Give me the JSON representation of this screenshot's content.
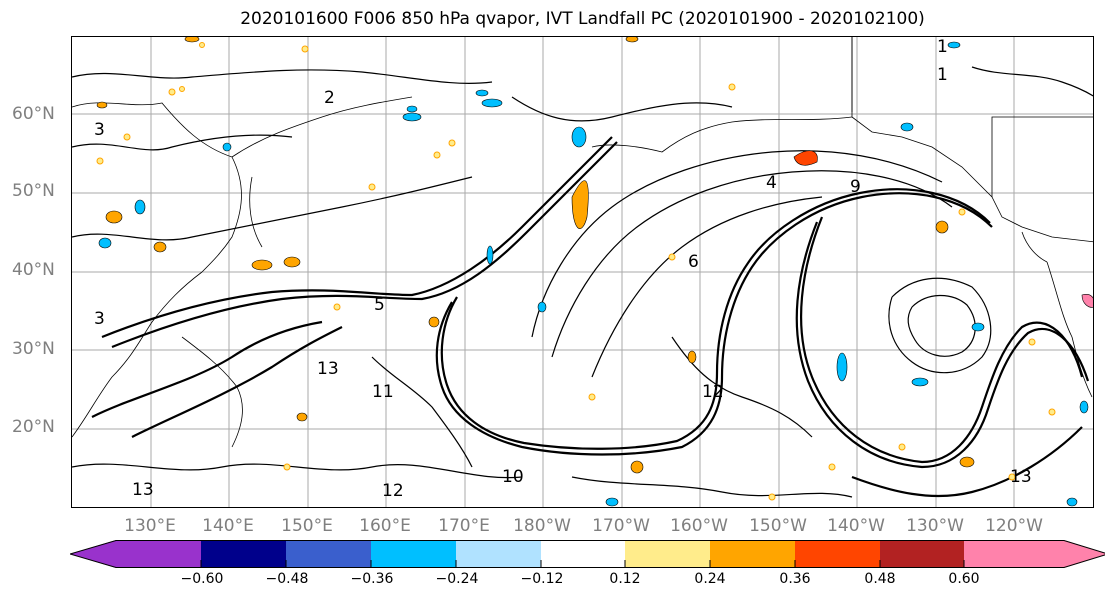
{
  "title": "2020101600 F006 850 hPa qvapor, IVT Landfall PC (2020101900 - 2020102100)",
  "lat_labels": [
    "60°N",
    "50°N",
    "40°N",
    "30°N",
    "20°N"
  ],
  "lon_labels": [
    "130°E",
    "140°E",
    "150°E",
    "160°E",
    "170°E",
    "180°W",
    "170°W",
    "160°W",
    "150°W",
    "140°W",
    "130°W",
    "120°W"
  ],
  "colorbar": {
    "colors": [
      "#9932cc",
      "#00008b",
      "#3a5fcd",
      "#00bfff",
      "#b0e2ff",
      "#ffffff",
      "#ffec8b",
      "#ffa500",
      "#ff4500",
      "#b22222",
      "#ff82ab"
    ],
    "tick_labels": [
      "−0.60",
      "−0.48",
      "−0.36",
      "−0.24",
      "−0.12",
      "0.12",
      "0.24",
      "0.36",
      "0.48",
      "0.60"
    ]
  },
  "contour_labels": [
    "1",
    "1",
    "2",
    "3",
    "3",
    "4",
    "5",
    "6",
    "9",
    "10",
    "11",
    "12",
    "12",
    "13",
    "13",
    "13"
  ],
  "colors": {
    "label_gray": "#7f7f7f",
    "grid": "#aaaaaa",
    "contour": "#000000"
  }
}
